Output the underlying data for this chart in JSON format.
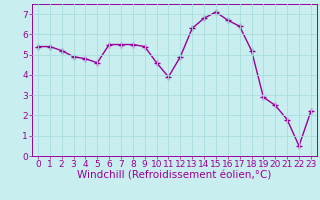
{
  "x": [
    0,
    1,
    2,
    3,
    4,
    5,
    6,
    7,
    8,
    9,
    10,
    11,
    12,
    13,
    14,
    15,
    16,
    17,
    18,
    19,
    20,
    21,
    22,
    23
  ],
  "y": [
    5.4,
    5.4,
    5.2,
    4.9,
    4.8,
    4.6,
    5.5,
    5.5,
    5.5,
    5.4,
    4.6,
    3.9,
    4.9,
    6.3,
    6.8,
    7.1,
    6.7,
    6.4,
    5.2,
    2.9,
    2.5,
    1.8,
    0.5,
    2.2
  ],
  "line_color": "#990099",
  "marker": "+",
  "marker_size": 4,
  "bg_color": "#c8eef0",
  "grid_color": "#aadddd",
  "xlabel": "Windchill (Refroidissement éolien,°C)",
  "xlabel_color": "#990099",
  "tick_color": "#990099",
  "ylim": [
    0,
    7.5
  ],
  "xlim": [
    -0.5,
    23.5
  ],
  "yticks": [
    0,
    1,
    2,
    3,
    4,
    5,
    6,
    7
  ],
  "xticks": [
    0,
    1,
    2,
    3,
    4,
    5,
    6,
    7,
    8,
    9,
    10,
    11,
    12,
    13,
    14,
    15,
    16,
    17,
    18,
    19,
    20,
    21,
    22,
    23
  ],
  "tick_fontsize": 6.5,
  "xlabel_fontsize": 7.5,
  "line_width": 1.0
}
